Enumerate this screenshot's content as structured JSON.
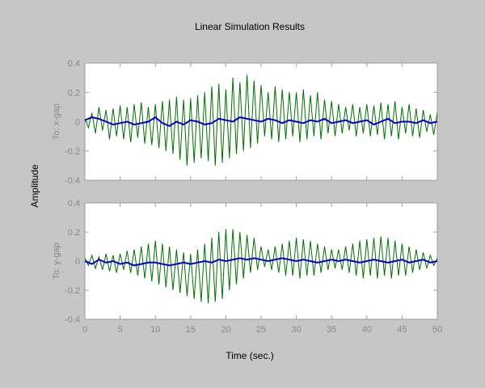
{
  "chart_data": {
    "type": "line",
    "title": "Linear Simulation Results",
    "xlabel": "Time (sec.)",
    "ylabel": "Amplitude",
    "xlim": [
      0,
      50
    ],
    "xticks": [
      0,
      5,
      10,
      15,
      20,
      25,
      30,
      35,
      40,
      45,
      50
    ],
    "grid": false,
    "subplots": [
      {
        "ylabel": "To: x-gap",
        "ylim": [
          -0.4,
          0.4
        ],
        "yticks": [
          -0.4,
          -0.2,
          0,
          0.2,
          0.4
        ],
        "series": [
          {
            "color": "#007000",
            "x": [
              0,
              0.5,
              1,
              1.5,
              2,
              2.5,
              3,
              3.5,
              4,
              4.5,
              5,
              5.5,
              6,
              6.5,
              7,
              7.5,
              8,
              8.5,
              9,
              9.5,
              10,
              10.5,
              11,
              11.5,
              12,
              12.5,
              13,
              13.5,
              14,
              14.5,
              15,
              15.5,
              16,
              16.5,
              17,
              17.5,
              18,
              18.5,
              19,
              19.5,
              20,
              20.5,
              21,
              21.5,
              22,
              22.5,
              23,
              23.5,
              24,
              24.5,
              25,
              25.5,
              26,
              26.5,
              27,
              27.5,
              28,
              28.5,
              29,
              29.5,
              30,
              30.5,
              31,
              31.5,
              32,
              32.5,
              33,
              33.5,
              34,
              34.5,
              35,
              35.5,
              36,
              36.5,
              37,
              37.5,
              38,
              38.5,
              39,
              39.5,
              40,
              40.5,
              41,
              41.5,
              42,
              42.5,
              43,
              43.5,
              44,
              44.5,
              45,
              45.5,
              46,
              46.5,
              47,
              47.5,
              48,
              48.5,
              49,
              49.5,
              50
            ],
            "y": [
              0.02,
              -0.04,
              0.06,
              -0.08,
              0.1,
              -0.06,
              0.08,
              -0.12,
              0.09,
              -0.1,
              0.11,
              -0.12,
              0.1,
              -0.14,
              0.12,
              -0.11,
              0.13,
              -0.15,
              0.1,
              -0.16,
              0.12,
              -0.18,
              0.14,
              -0.2,
              0.15,
              -0.22,
              0.17,
              -0.26,
              0.15,
              -0.3,
              0.16,
              -0.28,
              0.18,
              -0.25,
              0.2,
              -0.27,
              0.24,
              -0.3,
              0.26,
              -0.28,
              0.22,
              -0.25,
              0.3,
              -0.22,
              0.27,
              -0.2,
              0.32,
              -0.18,
              0.28,
              -0.15,
              0.25,
              -0.1,
              0.2,
              -0.12,
              0.24,
              -0.14,
              0.22,
              -0.12,
              0.2,
              -0.1,
              0.2,
              -0.14,
              0.22,
              -0.12,
              0.18,
              -0.1,
              0.2,
              -0.12,
              0.15,
              -0.08,
              0.14,
              -0.1,
              0.12,
              -0.08,
              0.1,
              -0.06,
              0.12,
              -0.1,
              0.1,
              -0.08,
              0.12,
              -0.1,
              0.11,
              -0.09,
              0.13,
              -0.12,
              0.12,
              -0.1,
              0.14,
              -0.12,
              0.1,
              -0.08,
              0.12,
              -0.1,
              0.09,
              -0.11,
              0.08,
              -0.07,
              0.05,
              -0.09,
              0.06
            ]
          },
          {
            "color": "#0000cc",
            "x": [
              0,
              1,
              2,
              3,
              4,
              5,
              6,
              7,
              8,
              9,
              10,
              11,
              12,
              13,
              14,
              15,
              16,
              17,
              18,
              19,
              20,
              21,
              22,
              23,
              24,
              25,
              26,
              27,
              28,
              29,
              30,
              31,
              32,
              33,
              34,
              35,
              36,
              37,
              38,
              39,
              40,
              41,
              42,
              43,
              44,
              45,
              46,
              47,
              48,
              49,
              50
            ],
            "y": [
              0.01,
              0.03,
              0.02,
              0.0,
              -0.02,
              -0.01,
              0.0,
              -0.02,
              -0.01,
              0.0,
              0.03,
              -0.01,
              -0.03,
              0.0,
              -0.02,
              0.01,
              0.0,
              -0.02,
              -0.01,
              0.02,
              0.01,
              0.0,
              0.03,
              0.02,
              0.01,
              0.0,
              0.02,
              0.01,
              -0.01,
              0.01,
              0.0,
              -0.01,
              0.01,
              0.0,
              0.02,
              -0.01,
              0.0,
              0.01,
              -0.01,
              0.0,
              0.01,
              -0.02,
              0.0,
              0.02,
              -0.01,
              0.0,
              0.0,
              -0.01,
              0.01,
              -0.01,
              0.0
            ]
          }
        ]
      },
      {
        "ylabel": "To: y-gap",
        "ylim": [
          -0.4,
          0.4
        ],
        "yticks": [
          -0.4,
          -0.2,
          0,
          0.2,
          0.4
        ],
        "series": [
          {
            "color": "#007000",
            "x": [
              0,
              0.5,
              1,
              1.5,
              2,
              2.5,
              3,
              3.5,
              4,
              4.5,
              5,
              5.5,
              6,
              6.5,
              7,
              7.5,
              8,
              8.5,
              9,
              9.5,
              10,
              10.5,
              11,
              11.5,
              12,
              12.5,
              13,
              13.5,
              14,
              14.5,
              15,
              15.5,
              16,
              16.5,
              17,
              17.5,
              18,
              18.5,
              19,
              19.5,
              20,
              20.5,
              21,
              21.5,
              22,
              22.5,
              23,
              23.5,
              24,
              24.5,
              25,
              25.5,
              26,
              26.5,
              27,
              27.5,
              28,
              28.5,
              29,
              29.5,
              30,
              30.5,
              31,
              31.5,
              32,
              32.5,
              33,
              33.5,
              34,
              34.5,
              35,
              35.5,
              36,
              36.5,
              37,
              37.5,
              38,
              38.5,
              39,
              39.5,
              40,
              40.5,
              41,
              41.5,
              42,
              42.5,
              43,
              43.5,
              44,
              44.5,
              45,
              45.5,
              46,
              46.5,
              47,
              47.5,
              48,
              48.5,
              49,
              49.5,
              50
            ],
            "y": [
              0.02,
              -0.03,
              0.04,
              -0.05,
              0.03,
              -0.06,
              0.05,
              -0.07,
              0.04,
              -0.08,
              0.05,
              -0.06,
              0.07,
              -0.08,
              0.08,
              -0.1,
              0.1,
              -0.12,
              0.12,
              -0.14,
              0.14,
              -0.16,
              0.12,
              -0.18,
              0.1,
              -0.2,
              0.08,
              -0.22,
              0.06,
              -0.24,
              0.05,
              -0.26,
              0.08,
              -0.28,
              0.12,
              -0.29,
              0.16,
              -0.28,
              0.2,
              -0.26,
              0.22,
              -0.2,
              0.22,
              -0.16,
              0.2,
              -0.12,
              0.18,
              -0.08,
              0.16,
              -0.06,
              0.1,
              -0.04,
              0.08,
              -0.06,
              0.1,
              -0.08,
              0.12,
              -0.1,
              0.14,
              -0.1,
              0.16,
              -0.12,
              0.15,
              -0.1,
              0.14,
              -0.1,
              0.12,
              -0.08,
              0.1,
              -0.06,
              0.08,
              -0.05,
              0.08,
              -0.06,
              0.1,
              -0.08,
              0.12,
              -0.1,
              0.14,
              -0.12,
              0.15,
              -0.1,
              0.16,
              -0.12,
              0.17,
              -0.1,
              0.16,
              -0.12,
              0.14,
              -0.1,
              0.12,
              -0.1,
              0.1,
              -0.08,
              0.08,
              -0.06,
              0.06,
              -0.05,
              0.04,
              -0.03,
              0.02
            ]
          },
          {
            "color": "#0000cc",
            "x": [
              0,
              1,
              2,
              3,
              4,
              5,
              6,
              7,
              8,
              9,
              10,
              11,
              12,
              13,
              14,
              15,
              16,
              17,
              18,
              19,
              20,
              21,
              22,
              23,
              24,
              25,
              26,
              27,
              28,
              29,
              30,
              31,
              32,
              33,
              34,
              35,
              36,
              37,
              38,
              39,
              40,
              41,
              42,
              43,
              44,
              45,
              46,
              47,
              48,
              49,
              50
            ],
            "y": [
              0.0,
              -0.02,
              0.01,
              -0.01,
              0.0,
              -0.02,
              -0.01,
              -0.03,
              -0.02,
              -0.01,
              -0.01,
              -0.02,
              -0.03,
              -0.02,
              -0.01,
              -0.02,
              -0.01,
              0.0,
              -0.01,
              0.01,
              0.0,
              0.01,
              0.02,
              0.01,
              0.02,
              0.01,
              0.0,
              0.01,
              0.02,
              0.01,
              0.0,
              0.01,
              0.0,
              -0.01,
              0.0,
              0.01,
              0.0,
              0.01,
              0.0,
              -0.01,
              0.0,
              0.01,
              0.0,
              -0.01,
              0.0,
              0.01,
              -0.01,
              0.0,
              0.01,
              -0.01,
              0.0
            ]
          }
        ]
      }
    ]
  }
}
